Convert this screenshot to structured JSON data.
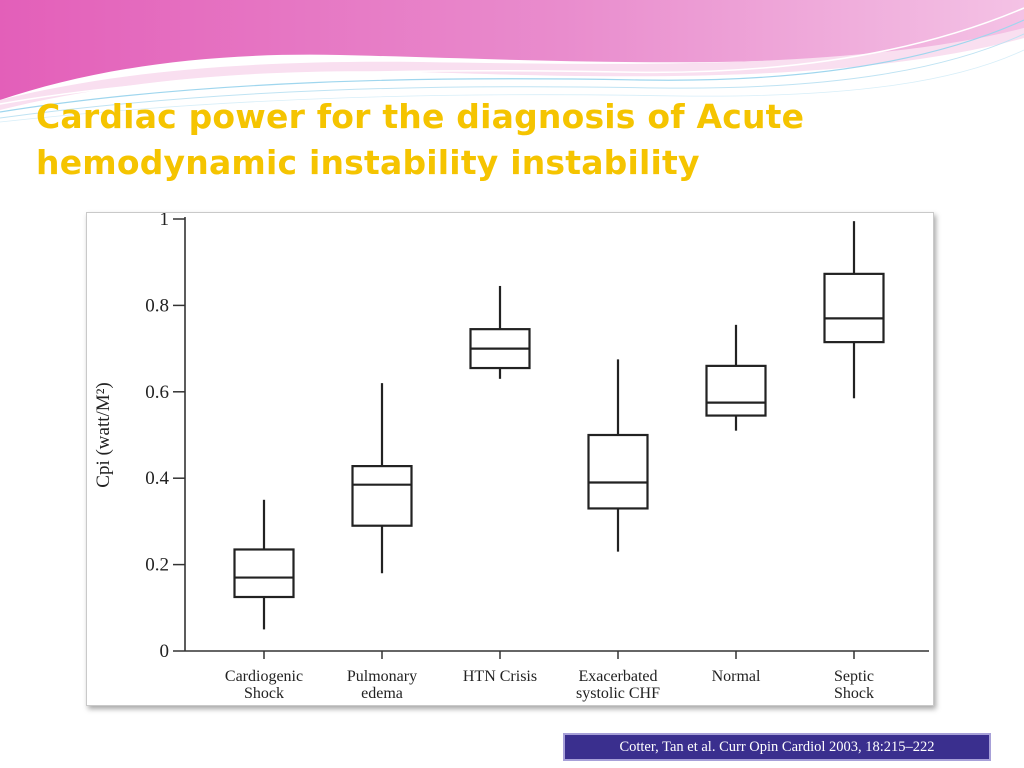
{
  "slide": {
    "title_line1": "Cardiac power for the diagnosis of Acute",
    "title_line2": "hemodynamic instability instability",
    "citation": "Cotter, Tan et al. Curr Opin Cardiol 2003, 18:215–222",
    "colors": {
      "title": "#f5c400",
      "banner_pink": "#e25fb8",
      "banner_light": "#f6c6e6",
      "citation_bg": "#3a2f8e"
    }
  },
  "chart_data": {
    "type": "box",
    "ylabel": "Cpi (watt/M²)",
    "xlabel": "",
    "ylim": [
      0,
      1
    ],
    "yticks": [
      "0",
      "0.2",
      "0.4",
      "0.6",
      "0.8",
      "1"
    ],
    "grid": false,
    "categories": [
      [
        "Cardiogenic",
        "Shock"
      ],
      [
        "Pulmonary",
        "edema"
      ],
      [
        "HTN Crisis"
      ],
      [
        "Exacerbated",
        "systolic CHF"
      ],
      [
        "Normal"
      ],
      [
        "Septic",
        "Shock"
      ]
    ],
    "boxes": [
      {
        "min": 0.05,
        "q1": 0.125,
        "median": 0.17,
        "q3": 0.235,
        "max": 0.35
      },
      {
        "min": 0.18,
        "q1": 0.29,
        "median": 0.385,
        "q3": 0.428,
        "max": 0.62
      },
      {
        "min": 0.63,
        "q1": 0.655,
        "median": 0.7,
        "q3": 0.745,
        "max": 0.845
      },
      {
        "min": 0.23,
        "q1": 0.33,
        "median": 0.39,
        "q3": 0.5,
        "max": 0.675
      },
      {
        "min": 0.51,
        "q1": 0.545,
        "median": 0.575,
        "q3": 0.66,
        "max": 0.755
      },
      {
        "min": 0.585,
        "q1": 0.715,
        "median": 0.77,
        "q3": 0.873,
        "max": 0.995
      }
    ]
  }
}
